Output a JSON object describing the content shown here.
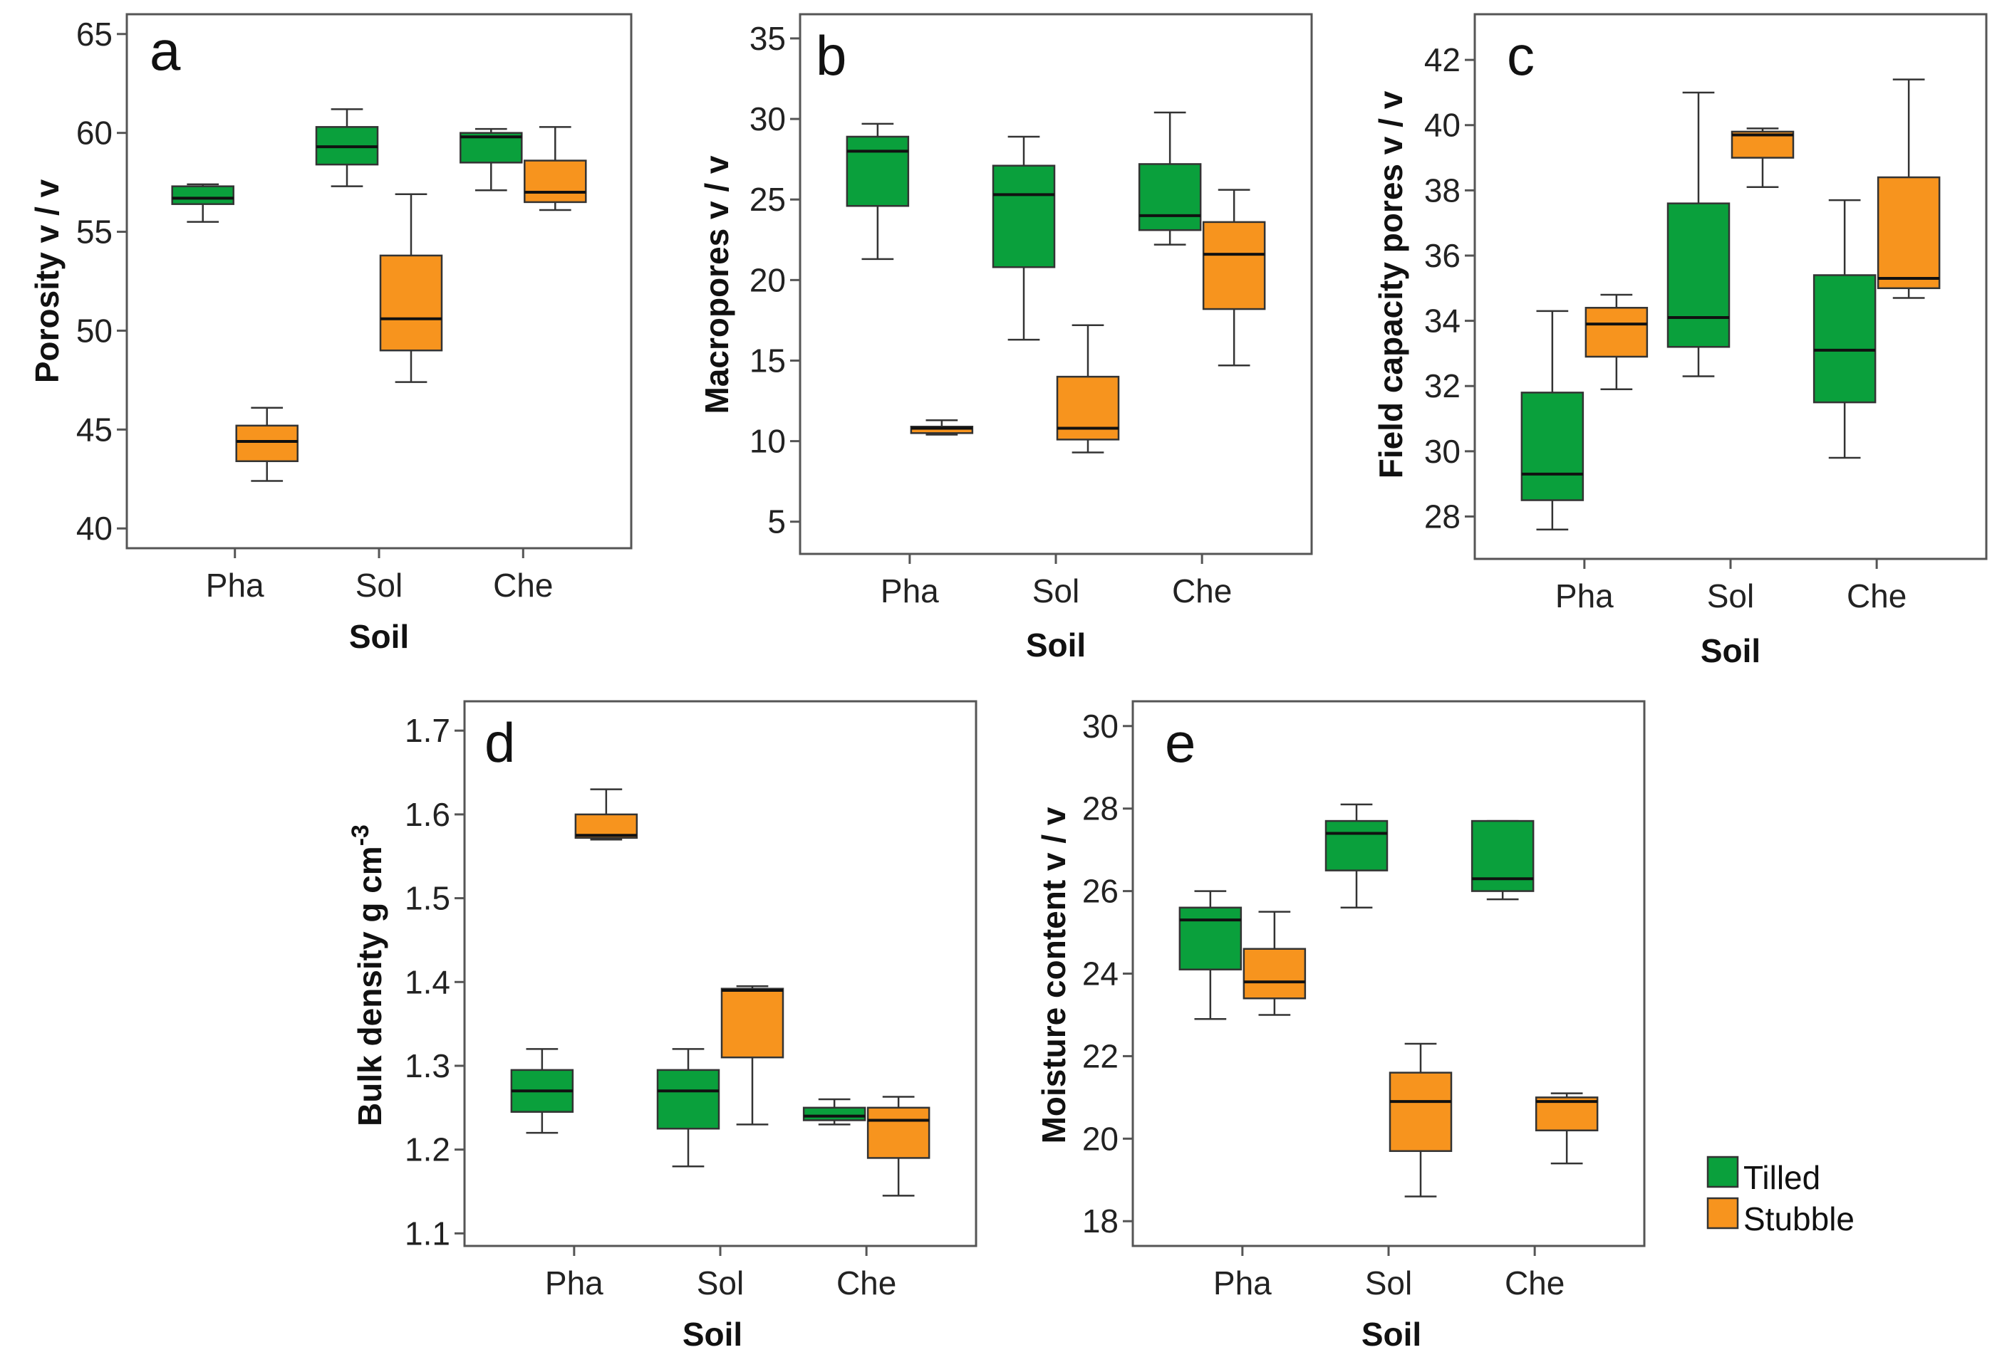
{
  "colors": {
    "tilled": "#0aa03c",
    "stubble": "#f7941e",
    "stroke": "#333333",
    "median": "#111111"
  },
  "legend": {
    "items": [
      {
        "label": "Tilled",
        "color": "#0aa03c"
      },
      {
        "label": "Stubble",
        "color": "#f7941e"
      }
    ]
  },
  "chart_data": [
    {
      "type": "box",
      "panel": "a",
      "xlabel": "Soil",
      "ylabel": "Porosity v / v",
      "categories": [
        "Pha",
        "Sol",
        "Che"
      ],
      "ylim": [
        39,
        66
      ],
      "yticks": [
        40,
        45,
        50,
        55,
        60,
        65
      ],
      "series": [
        {
          "name": "Tilled",
          "boxes": [
            {
              "min": 55.5,
              "q1": 56.4,
              "median": 56.7,
              "q3": 57.3,
              "max": 57.4
            },
            {
              "min": 57.3,
              "q1": 58.4,
              "median": 59.3,
              "q3": 60.3,
              "max": 61.2
            },
            {
              "min": 57.1,
              "q1": 58.5,
              "median": 59.8,
              "q3": 60.0,
              "max": 60.2
            }
          ]
        },
        {
          "name": "Stubble",
          "boxes": [
            {
              "min": 42.4,
              "q1": 43.4,
              "median": 44.4,
              "q3": 45.2,
              "max": 46.1
            },
            {
              "min": 47.4,
              "q1": 49.0,
              "median": 50.6,
              "q3": 53.8,
              "max": 56.9
            },
            {
              "min": 56.1,
              "q1": 56.5,
              "median": 57.0,
              "q3": 58.6,
              "max": 60.3
            }
          ]
        }
      ]
    },
    {
      "type": "box",
      "panel": "b",
      "xlabel": "Soil",
      "ylabel": "Macropores v / v",
      "categories": [
        "Pha",
        "Sol",
        "Che"
      ],
      "ylim": [
        3,
        36.5
      ],
      "yticks": [
        5,
        10,
        15,
        20,
        25,
        30,
        35
      ],
      "series": [
        {
          "name": "Tilled",
          "boxes": [
            {
              "min": 21.3,
              "q1": 24.6,
              "median": 28.0,
              "q3": 28.9,
              "max": 29.7
            },
            {
              "min": 16.3,
              "q1": 20.8,
              "median": 25.3,
              "q3": 27.1,
              "max": 28.9
            },
            {
              "min": 22.2,
              "q1": 23.1,
              "median": 24.0,
              "q3": 27.2,
              "max": 30.4
            }
          ]
        },
        {
          "name": "Stubble",
          "boxes": [
            {
              "min": 10.4,
              "q1": 10.5,
              "median": 10.8,
              "q3": 10.9,
              "max": 11.3
            },
            {
              "min": 9.3,
              "q1": 10.1,
              "median": 10.8,
              "q3": 14.0,
              "max": 17.2
            },
            {
              "min": 14.7,
              "q1": 18.2,
              "median": 21.6,
              "q3": 23.6,
              "max": 25.6
            }
          ]
        }
      ]
    },
    {
      "type": "box",
      "panel": "c",
      "xlabel": "Soil",
      "ylabel": "Field capacity pores v / v",
      "categories": [
        "Pha",
        "Sol",
        "Che"
      ],
      "ylim": [
        26.7,
        43.4
      ],
      "yticks": [
        28,
        30,
        32,
        34,
        36,
        38,
        40,
        42
      ],
      "series": [
        {
          "name": "Tilled",
          "boxes": [
            {
              "min": 27.6,
              "q1": 28.5,
              "median": 29.3,
              "q3": 31.8,
              "max": 34.3
            },
            {
              "min": 32.3,
              "q1": 33.2,
              "median": 34.1,
              "q3": 37.6,
              "max": 41.0
            },
            {
              "min": 29.8,
              "q1": 31.5,
              "median": 33.1,
              "q3": 35.4,
              "max": 37.7
            }
          ]
        },
        {
          "name": "Stubble",
          "boxes": [
            {
              "min": 31.9,
              "q1": 32.9,
              "median": 33.9,
              "q3": 34.4,
              "max": 34.8
            },
            {
              "min": 38.1,
              "q1": 39.0,
              "median": 39.7,
              "q3": 39.8,
              "max": 39.9
            },
            {
              "min": 34.7,
              "q1": 35.0,
              "median": 35.3,
              "q3": 38.4,
              "max": 41.4
            }
          ]
        }
      ]
    },
    {
      "type": "box",
      "panel": "d",
      "xlabel": "Soil",
      "ylabel": "Bulk density g cm-3",
      "categories": [
        "Pha",
        "Sol",
        "Che"
      ],
      "ylim": [
        1.085,
        1.735
      ],
      "yticks": [
        1.1,
        1.2,
        1.3,
        1.4,
        1.5,
        1.6,
        1.7
      ],
      "series": [
        {
          "name": "Tilled",
          "boxes": [
            {
              "min": 1.22,
              "q1": 1.245,
              "median": 1.27,
              "q3": 1.295,
              "max": 1.32
            },
            {
              "min": 1.18,
              "q1": 1.225,
              "median": 1.27,
              "q3": 1.295,
              "max": 1.32
            },
            {
              "min": 1.23,
              "q1": 1.235,
              "median": 1.24,
              "q3": 1.25,
              "max": 1.26
            }
          ]
        },
        {
          "name": "Stubble",
          "boxes": [
            {
              "min": 1.57,
              "q1": 1.572,
              "median": 1.575,
              "q3": 1.6,
              "max": 1.63
            },
            {
              "min": 1.23,
              "q1": 1.31,
              "median": 1.39,
              "q3": 1.392,
              "max": 1.395
            },
            {
              "min": 1.145,
              "q1": 1.19,
              "median": 1.235,
              "q3": 1.25,
              "max": 1.263
            }
          ]
        }
      ]
    },
    {
      "type": "box",
      "panel": "e",
      "xlabel": "Soil",
      "ylabel": "Moisture content v / v",
      "categories": [
        "Pha",
        "Sol",
        "Che"
      ],
      "ylim": [
        17.4,
        30.6
      ],
      "yticks": [
        18,
        20,
        22,
        24,
        26,
        28,
        30
      ],
      "series": [
        {
          "name": "Tilled",
          "boxes": [
            {
              "min": 22.9,
              "q1": 24.1,
              "median": 25.3,
              "q3": 25.6,
              "max": 26.0
            },
            {
              "min": 25.6,
              "q1": 26.5,
              "median": 27.4,
              "q3": 27.7,
              "max": 28.1
            },
            {
              "min": 25.8,
              "q1": 26.0,
              "median": 26.3,
              "q3": 27.7,
              "max": 27.7
            }
          ]
        },
        {
          "name": "Stubble",
          "boxes": [
            {
              "min": 23.0,
              "q1": 23.4,
              "median": 23.8,
              "q3": 24.6,
              "max": 25.5
            },
            {
              "min": 18.6,
              "q1": 19.7,
              "median": 20.9,
              "q3": 21.6,
              "max": 22.3
            },
            {
              "min": 19.4,
              "q1": 20.2,
              "median": 20.9,
              "q3": 21.0,
              "max": 21.1
            }
          ]
        }
      ]
    }
  ]
}
